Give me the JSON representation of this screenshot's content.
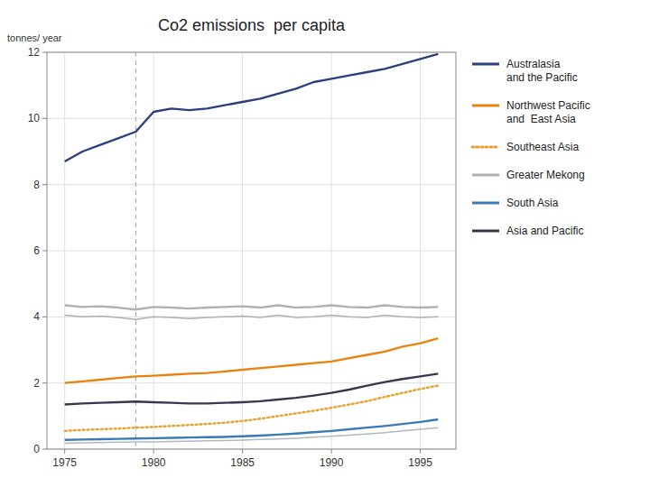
{
  "chart_data": {
    "type": "line",
    "title": "Co2 emissions  per capita",
    "ylabel": "tonnes/ year",
    "x": [
      1975,
      1976,
      1977,
      1978,
      1979,
      1980,
      1981,
      1982,
      1983,
      1984,
      1985,
      1986,
      1987,
      1988,
      1989,
      1990,
      1991,
      1992,
      1993,
      1994,
      1995,
      1996
    ],
    "series": [
      {
        "name": "Australasia\nand the Pacific",
        "color": "#2b3f7e",
        "line_style": "solid",
        "values": [
          8.7,
          9.0,
          9.2,
          9.4,
          9.6,
          10.2,
          10.3,
          10.25,
          10.3,
          10.4,
          10.5,
          10.6,
          10.75,
          10.9,
          11.1,
          11.2,
          11.3,
          11.4,
          11.5,
          11.65,
          11.8,
          11.95
        ]
      },
      {
        "name": "Northwest Pacific\nand  East Asia",
        "color": "#e8820c",
        "line_style": "solid",
        "values": [
          2.0,
          2.05,
          2.1,
          2.15,
          2.2,
          2.22,
          2.25,
          2.28,
          2.3,
          2.35,
          2.4,
          2.45,
          2.5,
          2.55,
          2.6,
          2.65,
          2.75,
          2.85,
          2.95,
          3.1,
          3.2,
          3.35
        ]
      },
      {
        "name": "Southeast Asia",
        "color": "#e8a030",
        "line_style": "dotted",
        "values": [
          0.55,
          0.58,
          0.6,
          0.62,
          0.65,
          0.67,
          0.7,
          0.73,
          0.76,
          0.8,
          0.85,
          0.92,
          1.0,
          1.08,
          1.16,
          1.25,
          1.35,
          1.45,
          1.58,
          1.7,
          1.82,
          1.92
        ]
      },
      {
        "name": "Greater Mekong",
        "color": "#b0b0b0",
        "line_style": "solid",
        "values": [
          4.35,
          4.3,
          4.32,
          4.28,
          4.22,
          4.3,
          4.28,
          4.25,
          4.28,
          4.3,
          4.32,
          4.28,
          4.35,
          4.28,
          4.3,
          4.35,
          4.3,
          4.28,
          4.35,
          4.3,
          4.28,
          4.3
        ]
      },
      {
        "color": "#b0b0b0",
        "line_style": "solid",
        "values": [
          4.05,
          4.0,
          4.02,
          3.98,
          3.92,
          4.0,
          3.98,
          3.95,
          3.98,
          4.0,
          4.02,
          3.98,
          4.05,
          3.98,
          4.0,
          4.05,
          4.0,
          3.98,
          4.05,
          4.0,
          3.98,
          4.0
        ]
      },
      {
        "name": "South Asia",
        "color": "#3a7ab5",
        "line_style": "solid",
        "values": [
          0.28,
          0.29,
          0.3,
          0.31,
          0.32,
          0.33,
          0.34,
          0.35,
          0.36,
          0.37,
          0.39,
          0.41,
          0.44,
          0.47,
          0.51,
          0.55,
          0.6,
          0.65,
          0.7,
          0.76,
          0.82,
          0.9
        ]
      },
      {
        "name": "Asia and Pacific",
        "color": "#3d3454",
        "line_style": "solid",
        "values": [
          1.35,
          1.38,
          1.4,
          1.42,
          1.44,
          1.42,
          1.4,
          1.38,
          1.38,
          1.4,
          1.42,
          1.45,
          1.5,
          1.55,
          1.62,
          1.7,
          1.8,
          1.92,
          2.03,
          2.12,
          2.2,
          2.28
        ]
      },
      {
        "color": "#b0b8c0",
        "line_style": "solid",
        "values": [
          0.18,
          0.19,
          0.2,
          0.21,
          0.22,
          0.22,
          0.23,
          0.24,
          0.25,
          0.26,
          0.27,
          0.29,
          0.31,
          0.33,
          0.36,
          0.39,
          0.42,
          0.46,
          0.5,
          0.55,
          0.6,
          0.65
        ]
      }
    ],
    "vlines": [
      1979
    ],
    "xlim": [
      1974,
      1997
    ],
    "ylim": [
      0,
      12
    ],
    "xticks": [
      1975,
      1980,
      1985,
      1990,
      1995
    ],
    "yticks": [
      0,
      2,
      4,
      6,
      8,
      10,
      12
    ],
    "grid": true,
    "legend": "right"
  }
}
